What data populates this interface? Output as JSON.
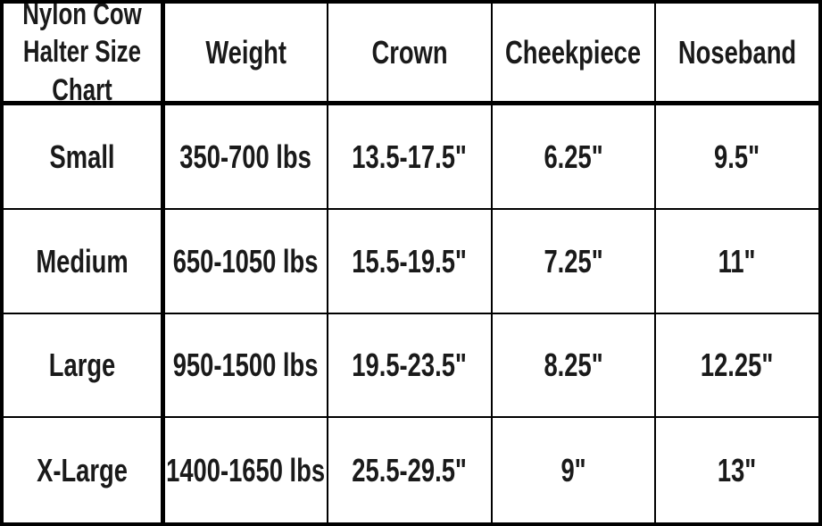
{
  "chart_data": {
    "type": "table",
    "title": "Nylon Cow Halter Size Chart",
    "header": [
      "Weight",
      "Crown",
      "Cheekpiece",
      "Noseband"
    ],
    "row_label_column": "Size",
    "rows": [
      [
        "Small",
        "350-700 lbs",
        "13.5-17.5\"",
        "6.25\"",
        "9.5\""
      ],
      [
        "Medium",
        "650-1050 lbs",
        "15.5-19.5\"",
        "7.25\"",
        "11\""
      ],
      [
        "Large",
        "950-1500 lbs",
        "19.5-23.5\"",
        "8.25\"",
        "12.25\""
      ],
      [
        "X-Large",
        "1400-1650 lbs",
        "25.5-29.5\"",
        "9\"",
        "13\""
      ]
    ],
    "layout": {
      "grid": "on",
      "thick_border_below_header_row": true,
      "thick_border_right_of_first_column": true
    }
  },
  "colors": {
    "border": "#000000",
    "background": "#ffffff",
    "text": "#1a1a1a"
  }
}
